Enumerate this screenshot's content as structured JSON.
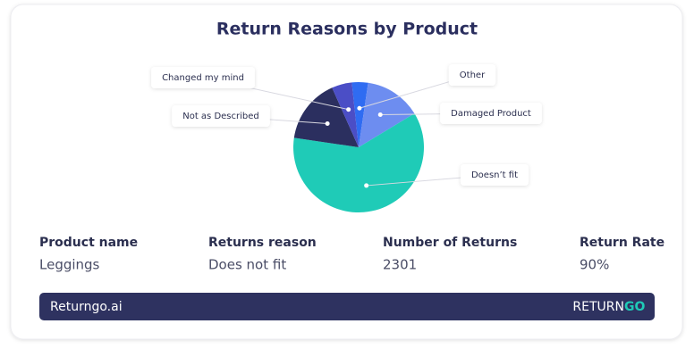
{
  "chart_data": {
    "type": "pie",
    "title": "Return Reasons by Product",
    "categories": [
      "Other",
      "Damaged Product",
      "Doesn’t fit",
      "Not as Described",
      "Changed my mind"
    ],
    "values": [
      4,
      14,
      61,
      16,
      5
    ],
    "colors": [
      "#2f6cf2",
      "#6d8df0",
      "#1fcbb7",
      "#2b2f5f",
      "#4b4ec6"
    ]
  },
  "table": {
    "headers": [
      "Product name",
      "Returns reason",
      "Number of Returns",
      "Return Rate"
    ],
    "rows": [
      [
        "Leggings",
        "Does not fit",
        "2301",
        "90%"
      ]
    ]
  },
  "footer": {
    "site": "Returngo.ai",
    "logo_left": "RETURN",
    "logo_right": "GO"
  }
}
